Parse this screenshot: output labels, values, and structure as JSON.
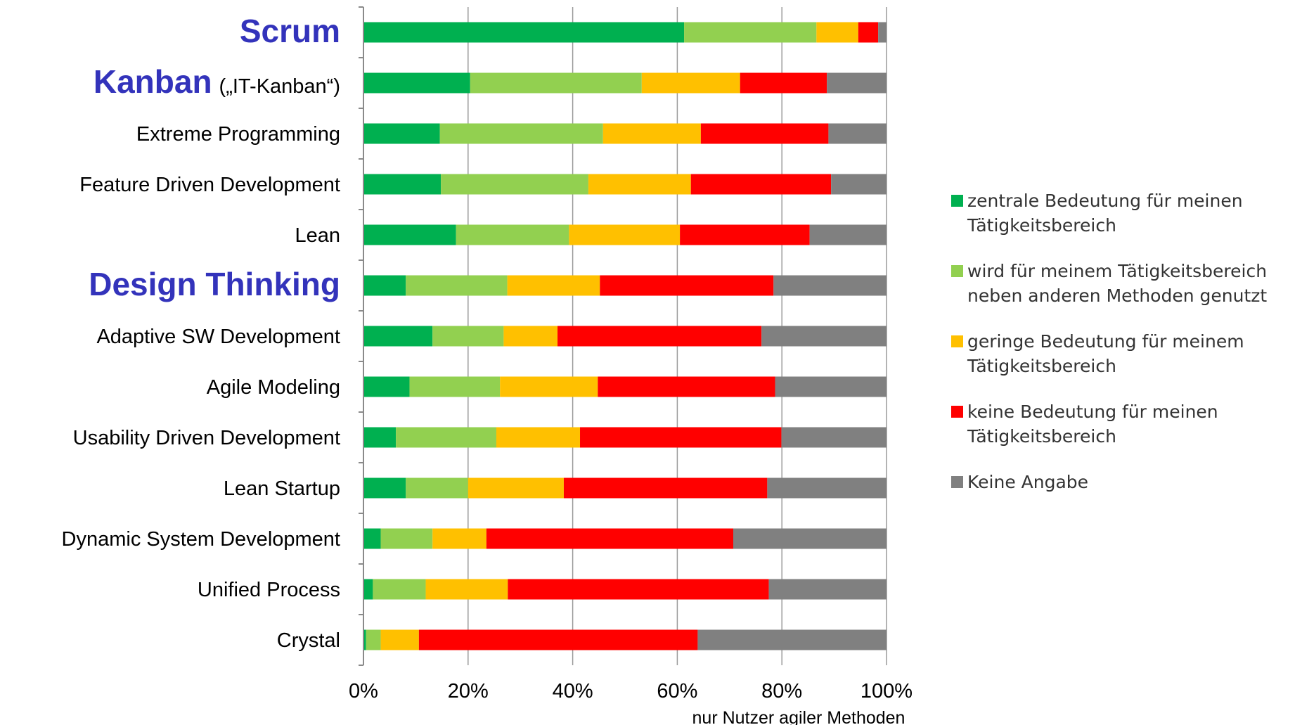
{
  "chart_data": {
    "type": "bar",
    "orientation": "horizontal",
    "stacked": true,
    "categories": [
      {
        "label": "Scrum",
        "note": "",
        "highlight": true
      },
      {
        "label": "Kanban",
        "note": "(„IT-Kanban“)",
        "highlight": true
      },
      {
        "label": "Extreme Programming",
        "note": "",
        "highlight": false
      },
      {
        "label": "Feature Driven Development",
        "note": "",
        "highlight": false
      },
      {
        "label": "Lean",
        "note": "",
        "highlight": false
      },
      {
        "label": "Design Thinking",
        "note": "",
        "highlight": true
      },
      {
        "label": "Adaptive SW Development",
        "note": "",
        "highlight": false
      },
      {
        "label": "Agile Modeling",
        "note": "",
        "highlight": false
      },
      {
        "label": "Usability Driven Development",
        "note": "",
        "highlight": false
      },
      {
        "label": "Lean Startup",
        "note": "",
        "highlight": false
      },
      {
        "label": "Dynamic System Development",
        "note": "",
        "highlight": false
      },
      {
        "label": "Unified Process",
        "note": "",
        "highlight": false
      },
      {
        "label": "Crystal",
        "note": "",
        "highlight": false
      }
    ],
    "series": [
      {
        "name": "zentrale Bedeutung für meinen\nTätigkeitsbereich",
        "color": "#00b050",
        "values": [
          61.3,
          20.4,
          14.6,
          14.8,
          17.7,
          8.1,
          13.2,
          8.8,
          6.2,
          8.1,
          3.3,
          1.8,
          0.5
        ]
      },
      {
        "name": "wird für meinem Tätigkeitsbereich\nneben anderen Methoden genutzt",
        "color": "#92d050",
        "values": [
          25.3,
          32.8,
          31.2,
          28.2,
          21.6,
          19.4,
          13.6,
          17.3,
          19.2,
          11.9,
          9.9,
          10.1,
          2.8
        ]
      },
      {
        "name": "geringe Bedeutung für meinem\nTätigkeitsbereich",
        "color": "#ffc000",
        "values": [
          8.0,
          18.8,
          18.7,
          19.6,
          21.2,
          17.7,
          10.3,
          18.7,
          16.0,
          18.3,
          10.3,
          15.7,
          7.3
        ]
      },
      {
        "name": "keine Bedeutung für meinen\nTätigkeitsbereich",
        "color": "#ff0000",
        "values": [
          3.8,
          16.6,
          24.4,
          26.8,
          24.8,
          33.2,
          39.0,
          33.9,
          38.5,
          38.9,
          47.2,
          49.9,
          53.3
        ]
      },
      {
        "name": "Keine Angabe",
        "color": "#808080",
        "values": [
          1.6,
          11.4,
          11.1,
          10.6,
          14.7,
          21.6,
          23.9,
          21.3,
          20.1,
          22.8,
          29.3,
          22.5,
          36.1
        ]
      }
    ],
    "x_ticks": [
      "0%",
      "20%",
      "40%",
      "60%",
      "80%",
      "100%"
    ],
    "xlim": [
      0,
      100
    ],
    "xlabel": "nur Nutzer agiler Methoden",
    "grid": "vertical",
    "legend_position": "right"
  }
}
